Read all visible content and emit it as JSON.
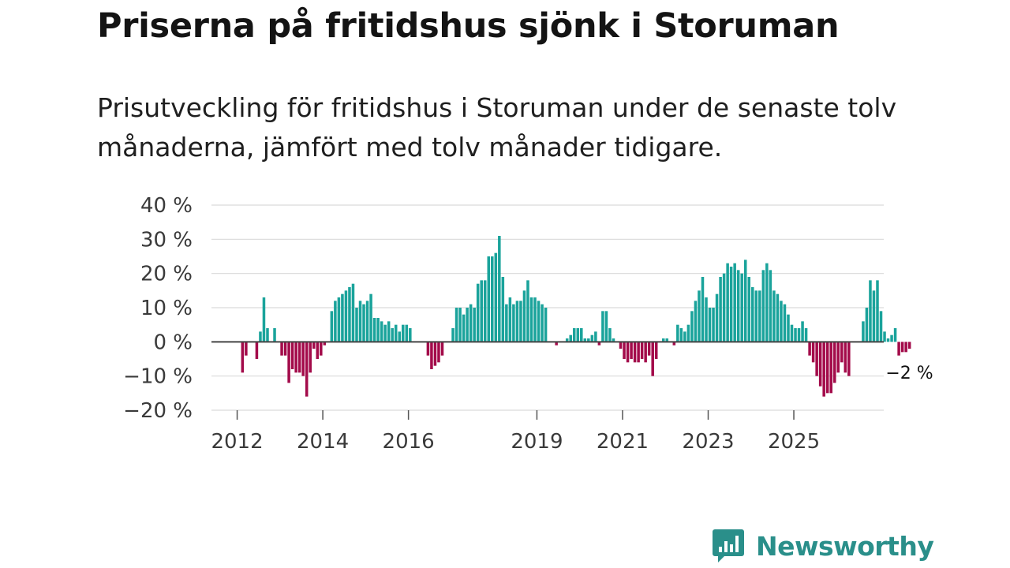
{
  "header": {
    "title": "Priserna på fritidshus sjönk i Storuman",
    "subtitle": "Prisutveckling för fritidshus i Storuman under de senaste tolv månaderna, jämfört med tolv månader tidigare."
  },
  "brand": {
    "name": "Newsworthy",
    "color": "#2a8f8a"
  },
  "colors": {
    "positive": "#1aa39b",
    "negative": "#a30b4a",
    "grid": "#d9d9d9",
    "zero_line": "#444444"
  },
  "chart_data": {
    "type": "bar",
    "title": "Priserna på fritidshus sjönk i Storuman",
    "xlabel": "",
    "ylabel": "",
    "ylim": [
      -20,
      40
    ],
    "y_ticks": [
      40,
      30,
      20,
      10,
      0,
      -10,
      -20
    ],
    "y_tick_labels": [
      "40 %",
      "30 %",
      "20 %",
      "10 %",
      "0 %",
      "−10 %",
      "−20 %"
    ],
    "x_ticks": [
      {
        "t": 2012,
        "label": "2012"
      },
      {
        "t": 2014,
        "label": "2014"
      },
      {
        "t": 2016,
        "label": "2016"
      },
      {
        "t": 2019,
        "label": "2019"
      },
      {
        "t": 2021,
        "label": "2021"
      },
      {
        "t": 2023,
        "label": "2023"
      },
      {
        "t": 2025,
        "label": "2025"
      }
    ],
    "x_range": [
      2011.4,
      2027.1
    ],
    "series_start": 2012,
    "step_per_bar": 0.0833,
    "end_label": "−2 %",
    "values": [
      0,
      -9,
      -4,
      0,
      0,
      -5,
      3,
      13,
      4,
      0,
      4,
      0,
      -4,
      -4,
      -12,
      -8,
      -9,
      -9,
      -10,
      -16,
      -9,
      -2,
      -5,
      -4,
      -1,
      0,
      9,
      12,
      13,
      14,
      15,
      16,
      17,
      10,
      12,
      11,
      12,
      14,
      7,
      7,
      6,
      5,
      6,
      4,
      5,
      3,
      5,
      5,
      4,
      0,
      0,
      0,
      0,
      -4,
      -8,
      -7,
      -6,
      -4,
      0,
      0,
      4,
      10,
      10,
      8,
      10,
      11,
      10,
      17,
      18,
      18,
      25,
      25,
      26,
      31,
      19,
      11,
      13,
      11,
      12,
      12,
      15,
      18,
      13,
      13,
      12,
      11,
      10,
      0,
      0,
      -1,
      0,
      0,
      1,
      2,
      4,
      4,
      4,
      1,
      1,
      2,
      3,
      -1,
      9,
      9,
      4,
      1,
      0,
      -2,
      -5,
      -6,
      -5,
      -6,
      -6,
      -5,
      -6,
      -4,
      -10,
      -5,
      0,
      1,
      1,
      0,
      -1,
      5,
      4,
      3,
      5,
      9,
      12,
      15,
      19,
      13,
      10,
      10,
      14,
      19,
      20,
      23,
      22,
      23,
      21,
      20,
      24,
      19,
      16,
      15,
      15,
      21,
      23,
      21,
      15,
      14,
      12,
      11,
      8,
      5,
      4,
      4,
      6,
      4,
      -4,
      -6,
      -10,
      -13,
      -16,
      -15,
      -15,
      -12,
      -9,
      -6,
      -9,
      -10,
      0,
      0,
      0,
      6,
      10,
      18,
      15,
      18,
      9,
      3,
      1,
      2,
      4,
      -4,
      -3,
      -3,
      -2
    ]
  }
}
